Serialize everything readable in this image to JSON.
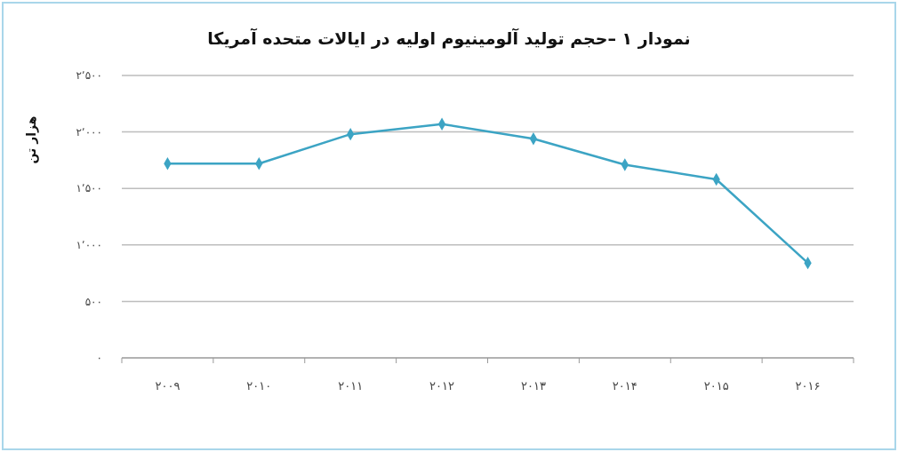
{
  "chart_data": {
    "type": "line",
    "title": "نمودار ۱ –حجم تولید آلومینیوم اولیه در ایالات متحده آمریکا",
    "ylabel": "هزار تن",
    "categories": [
      "۲۰۰۹",
      "۲۰۱۰",
      "۲۰۱۱",
      "۲۰۱۲",
      "۲۰۱۳",
      "۲۰۱۴",
      "۲۰۱۵",
      "۲۰۱۶"
    ],
    "series": [
      {
        "color": "#3ca4c4",
        "values": [
          1720,
          1720,
          1980,
          2070,
          1940,
          1710,
          1580,
          840
        ]
      }
    ],
    "ylim": [
      0,
      2500
    ],
    "yticks": [
      {
        "value": 0,
        "label": "۰"
      },
      {
        "value": 500,
        "label": "۵۰۰"
      },
      {
        "value": 1000,
        "label": "۱٬۰۰۰"
      },
      {
        "value": 1500,
        "label": "۱٬۵۰۰"
      },
      {
        "value": 2000,
        "label": "۲٬۰۰۰"
      },
      {
        "value": 2500,
        "label": "۲٬۵۰۰"
      }
    ],
    "grid": "y",
    "marker": "diamond",
    "line_style": "solid"
  }
}
